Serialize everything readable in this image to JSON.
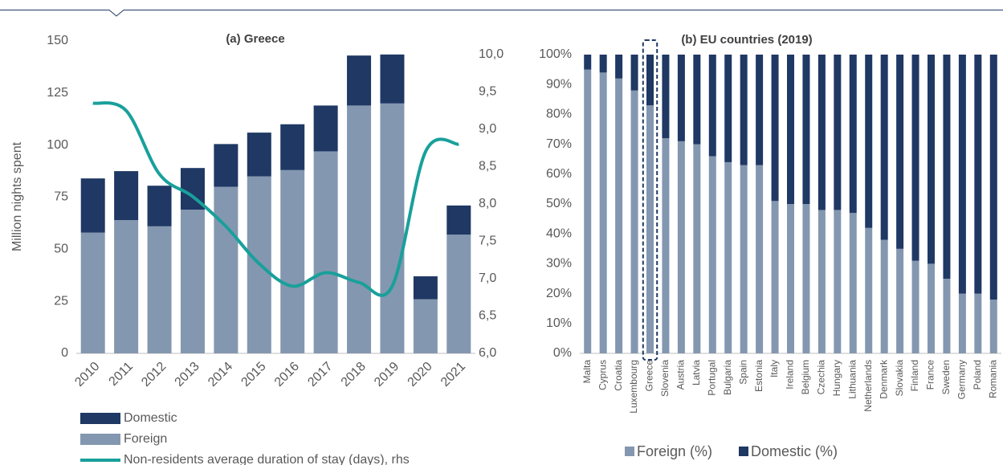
{
  "chart_data": [
    {
      "type": "bar",
      "stacked": true,
      "title": "(a) Greece",
      "y_label": "Million nights spent",
      "categories": [
        "2010",
        "2011",
        "2012",
        "2013",
        "2014",
        "2015",
        "2016",
        "2017",
        "2018",
        "2019",
        "2020",
        "2021"
      ],
      "series": [
        {
          "name": "Foreign",
          "color": "#8497b0",
          "values": [
            58,
            64,
            61,
            69,
            80,
            85,
            88,
            97,
            119,
            120,
            26,
            57
          ]
        },
        {
          "name": "Domestic",
          "color": "#1f3864",
          "values": [
            26,
            23.5,
            19.5,
            20,
            20.5,
            21,
            22,
            22,
            24,
            23.5,
            11,
            14
          ]
        },
        {
          "name": "Non-residents average duration of stay (days), rhs",
          "type": "line",
          "axis": "y2",
          "color": "#19a09b",
          "values": [
            9.35,
            9.25,
            8.4,
            8.1,
            7.7,
            7.2,
            6.9,
            7.08,
            6.95,
            6.9,
            8.7,
            8.8
          ]
        }
      ],
      "ylim": [
        0,
        150
      ],
      "yticks": [
        0,
        25,
        50,
        75,
        100,
        125,
        150
      ],
      "y2lim": [
        6,
        10
      ],
      "y2ticks": [
        {
          "value": 6,
          "label": "6,0"
        },
        {
          "value": 6.5,
          "label": "6,5"
        },
        {
          "value": 7,
          "label": "7,0"
        },
        {
          "value": 7.5,
          "label": "7,5"
        },
        {
          "value": 8,
          "label": "8,0"
        },
        {
          "value": 8.5,
          "label": "8,5"
        },
        {
          "value": 9,
          "label": "9,0"
        },
        {
          "value": 9.5,
          "label": "9,5"
        },
        {
          "value": 10,
          "label": "10,0"
        }
      ]
    },
    {
      "type": "bar",
      "stacked": true,
      "title": "(b) EU countries (2019)",
      "highlight_index": 4,
      "categories": [
        "Malta",
        "Cyprus",
        "Croatia",
        "Luxembourg",
        "Greece",
        "Slovenia",
        "Austria",
        "Latvia",
        "Portugal",
        "Bulgaria",
        "Spain",
        "Estonia",
        "Italy",
        "Ireland",
        "Belgium",
        "Czechia",
        "Hungary",
        "Lithuania",
        "Netherlands",
        "Denmark",
        "Slovakia",
        "Finland",
        "France",
        "Sweden",
        "Germany",
        "Poland",
        "Romania"
      ],
      "series": [
        {
          "name": "Foreign (%)",
          "color": "#8497b0",
          "values": [
            95,
            94,
            92,
            88,
            83,
            72,
            71,
            70,
            66,
            64,
            63,
            63,
            51,
            50,
            50,
            48,
            48,
            47,
            42,
            38,
            35,
            31,
            30,
            25,
            20,
            20,
            18
          ]
        },
        {
          "name": "Domestic (%)",
          "color": "#1f3864",
          "values": [
            5,
            6,
            8,
            12,
            17,
            28,
            29,
            30,
            34,
            36,
            37,
            37,
            49,
            50,
            50,
            52,
            52,
            53,
            58,
            62,
            65,
            69,
            70,
            75,
            80,
            80,
            82
          ]
        }
      ],
      "ylim": [
        0,
        100
      ],
      "yticks": [
        {
          "value": 0,
          "label": "0%"
        },
        {
          "value": 10,
          "label": "10%"
        },
        {
          "value": 20,
          "label": "20%"
        },
        {
          "value": 30,
          "label": "30%"
        },
        {
          "value": 40,
          "label": "40%"
        },
        {
          "value": 50,
          "label": "50%"
        },
        {
          "value": 60,
          "label": "60%"
        },
        {
          "value": 70,
          "label": "70%"
        },
        {
          "value": 80,
          "label": "80%"
        },
        {
          "value": 90,
          "label": "90%"
        },
        {
          "value": 100,
          "label": "100%"
        }
      ]
    }
  ]
}
